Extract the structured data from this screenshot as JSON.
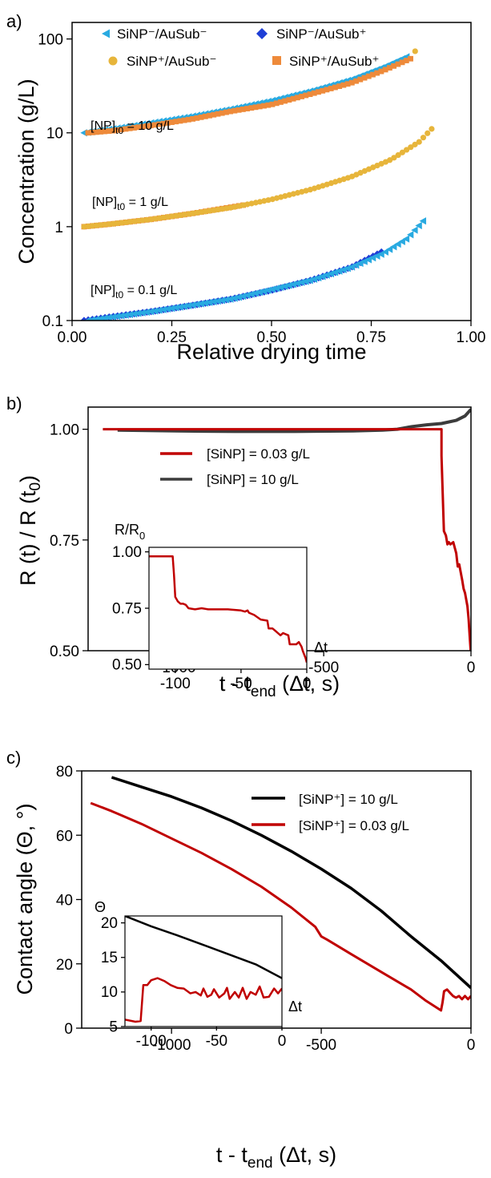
{
  "chart_data": [
    {
      "type": "scatter",
      "panel_label": "a)",
      "xlabel": "Relative drying time",
      "ylabel": "Concentration (g/L)",
      "xlim": [
        0,
        1
      ],
      "ylim": [
        0.1,
        150
      ],
      "y_scale": "log",
      "x_ticks": [
        "0.00",
        "0.25",
        "0.50",
        "0.75",
        "1.00"
      ],
      "y_ticks": [
        "0.1",
        "1",
        "10",
        "100"
      ],
      "legend": [
        {
          "label": "SiNP⁻/AuSub⁻",
          "color": "#29aae1",
          "marker": "triangle-left"
        },
        {
          "label": "SiNP⁻/AuSub⁺",
          "color": "#1f3fd6",
          "marker": "diamond"
        },
        {
          "label": "SiNP⁺/AuSub⁻",
          "color": "#e7b53b",
          "marker": "circle"
        },
        {
          "label": "SiNP⁺/AuSub⁺",
          "color": "#ee8a3a",
          "marker": "square"
        }
      ],
      "annotations": [
        "[NP]t0 = 10 g/L",
        "[NP]t0 = 1 g/L",
        "[NP]t0 = 0.1 g/L"
      ],
      "series": [
        {
          "name": "SiNP⁻/AuSub⁻",
          "color": "#29aae1",
          "marker": "triangle-left",
          "x": [
            0.03,
            0.1,
            0.2,
            0.3,
            0.4,
            0.5,
            0.6,
            0.7,
            0.78,
            0.84
          ],
          "y": [
            10,
            11,
            12.8,
            15,
            18,
            22,
            28,
            37,
            50,
            65
          ]
        },
        {
          "name": "SiNP⁺/AuSub⁺",
          "color": "#ee8a3a",
          "marker": "square",
          "x": [
            0.04,
            0.1,
            0.2,
            0.3,
            0.4,
            0.5,
            0.6,
            0.7,
            0.78,
            0.85
          ],
          "y": [
            10,
            10.5,
            12,
            14,
            17,
            20,
            26,
            34,
            46,
            62
          ]
        },
        {
          "name": "SiNP⁺/AuSub⁺",
          "color": "#ee8a3a",
          "marker": "square",
          "x": [
            0.03,
            0.1,
            0.2,
            0.3,
            0.43
          ],
          "y": [
            1.0,
            1.07,
            1.2,
            1.38,
            1.7
          ]
        },
        {
          "name": "SiNP⁺/AuSub⁻",
          "color": "#e7b53b",
          "marker": "circle",
          "x": [
            0.03,
            0.1,
            0.2,
            0.3,
            0.4,
            0.5,
            0.6,
            0.7,
            0.8,
            0.87,
            0.91
          ],
          "y": [
            1.0,
            1.07,
            1.2,
            1.38,
            1.6,
            1.95,
            2.5,
            3.4,
            5.2,
            8,
            12
          ]
        },
        {
          "name": "SiNP⁺/AuSub⁻",
          "color": "#e7b53b",
          "marker": "circle",
          "x": [
            0.86,
            0.87
          ],
          "y": [
            74,
            76
          ]
        },
        {
          "name": "SiNP⁻/AuSub⁺",
          "color": "#1f3fd6",
          "marker": "diamond",
          "x": [
            0.03,
            0.1,
            0.2,
            0.3,
            0.4,
            0.5,
            0.6,
            0.7,
            0.78
          ],
          "y": [
            0.1,
            0.11,
            0.125,
            0.145,
            0.17,
            0.21,
            0.27,
            0.37,
            0.55
          ]
        },
        {
          "name": "SiNP⁻/AuSub⁻",
          "color": "#29aae1",
          "marker": "triangle-left",
          "x": [
            0.04,
            0.2,
            0.4,
            0.6,
            0.7,
            0.78,
            0.84,
            0.88
          ],
          "y": [
            0.1,
            0.125,
            0.17,
            0.27,
            0.37,
            0.52,
            0.75,
            1.15
          ]
        }
      ]
    },
    {
      "type": "line",
      "panel_label": "b)",
      "xlabel": "t - tend (Δt, s)",
      "ylabel": "R (t) / R (t0)",
      "xlim": [
        -1300,
        0
      ],
      "ylim": [
        0.5,
        1.05
      ],
      "x_ticks": [
        "-1000",
        "-500",
        "0"
      ],
      "y_ticks": [
        "0.50",
        "0.75",
        "1.00"
      ],
      "legend": [
        {
          "label": "[SiNP] = 0.03 g/L",
          "color": "#c00000"
        },
        {
          "label": "[SiNP] = 10 g/L",
          "color": "#3c3c3c"
        }
      ],
      "series": [
        {
          "name": "[SiNP] = 0.03 g/L",
          "color": "#c00000",
          "x": [
            -1250,
            -100,
            -100,
            -92,
            -85,
            -80,
            -75,
            -70,
            -60,
            -50,
            -45,
            -40,
            -30,
            -25,
            -20,
            -12,
            -8,
            -4,
            -1
          ],
          "y": [
            1.0,
            1.0,
            0.94,
            0.77,
            0.76,
            0.74,
            0.745,
            0.74,
            0.745,
            0.72,
            0.69,
            0.695,
            0.66,
            0.64,
            0.63,
            0.6,
            0.57,
            0.53,
            0.5
          ]
        },
        {
          "name": "[SiNP] = 10 g/L",
          "color": "#3c3c3c",
          "x": [
            -1200,
            -1000,
            -800,
            -600,
            -400,
            -300,
            -250,
            -200,
            -150,
            -100,
            -50,
            -20,
            0
          ],
          "y": [
            0.998,
            0.996,
            0.995,
            0.995,
            0.996,
            0.998,
            1.0,
            1.006,
            1.01,
            1.013,
            1.02,
            1.03,
            1.045
          ]
        }
      ],
      "inset": {
        "ylabel": "R/R0",
        "xlabel": "Δt",
        "xlim": [
          -120,
          0
        ],
        "ylim": [
          0.48,
          1.02
        ],
        "x_ticks": [
          "-100",
          "-50",
          "0"
        ],
        "y_ticks": [
          "0.50",
          "0.75",
          "1.00"
        ],
        "series": [
          {
            "name": "[SiNP] = 0.03 g/L",
            "color": "#c00000",
            "x": [
              -120,
              -102,
              -101,
              -100,
              -98,
              -96,
              -94,
              -92,
              -90,
              -85,
              -80,
              -75,
              -70,
              -60,
              -50,
              -47,
              -45,
              -44,
              -40,
              -35,
              -30,
              -29,
              -26,
              -24,
              -20,
              -18,
              -14,
              -13,
              -8,
              -6,
              -4,
              -3,
              -1,
              0
            ],
            "y": [
              0.98,
              0.98,
              0.9,
              0.8,
              0.78,
              0.77,
              0.77,
              0.765,
              0.75,
              0.745,
              0.75,
              0.745,
              0.745,
              0.745,
              0.74,
              0.735,
              0.74,
              0.73,
              0.72,
              0.7,
              0.695,
              0.66,
              0.66,
              0.65,
              0.63,
              0.64,
              0.63,
              0.59,
              0.59,
              0.6,
              0.58,
              0.56,
              0.53,
              0.51
            ]
          }
        ]
      }
    },
    {
      "type": "line",
      "panel_label": "c)",
      "xlabel": "t - tend (Δt, s)",
      "ylabel": "Contact angle (Θ, °)",
      "xlim": [
        -1300,
        0
      ],
      "ylim": [
        0,
        80
      ],
      "x_ticks": [
        "-1000",
        "-500",
        "0"
      ],
      "y_ticks": [
        "0",
        "20",
        "40",
        "60",
        "80"
      ],
      "legend": [
        {
          "label": "[SiNP⁺] = 10 g/L",
          "color": "#000000"
        },
        {
          "label": "[SiNP⁺] = 0.03 g/L",
          "color": "#c00000"
        }
      ],
      "series": [
        {
          "name": "[SiNP⁺] = 10 g/L",
          "color": "#000000",
          "x": [
            -1200,
            -1100,
            -1000,
            -900,
            -800,
            -700,
            -600,
            -500,
            -400,
            -300,
            -200,
            -100,
            0
          ],
          "y": [
            78,
            75,
            72,
            68.5,
            64.5,
            60,
            55,
            49.5,
            43.5,
            36.5,
            28.5,
            21,
            12.5
          ]
        },
        {
          "name": "[SiNP⁺] = 0.03 g/L",
          "color": "#c00000",
          "x": [
            -1270,
            -1200,
            -1100,
            -1000,
            -900,
            -800,
            -700,
            -600,
            -520,
            -500,
            -480,
            -400,
            -300,
            -200,
            -150,
            -100,
            -95,
            -90,
            -80,
            -70,
            -60,
            -50,
            -40,
            -30,
            -20,
            -10,
            0
          ],
          "y": [
            70,
            67.5,
            63.5,
            59,
            54.5,
            49.5,
            44,
            37.5,
            31.5,
            28.5,
            27.5,
            23,
            17.5,
            12,
            8.5,
            5.5,
            8,
            11.5,
            12,
            11,
            10,
            9.5,
            10,
            9,
            10,
            9,
            10
          ]
        }
      ],
      "inset": {
        "ylabel": "Θ",
        "xlabel": "Δt",
        "xlim": [
          -120,
          0
        ],
        "ylim": [
          5,
          21
        ],
        "x_ticks": [
          "-100",
          "-50",
          "0"
        ],
        "y_ticks": [
          "5",
          "10",
          "15",
          "20"
        ],
        "series": [
          {
            "name": "[SiNP⁺] = 10 g/L",
            "color": "#000000",
            "x": [
              -120,
              -100,
              -80,
              -60,
              -40,
              -20,
              0
            ],
            "y": [
              21,
              19.5,
              18.2,
              16.8,
              15.4,
              14,
              12
            ]
          },
          {
            "name": "[SiNP⁺] = 0.03 g/L",
            "color": "#c00000",
            "x": [
              -120,
              -112,
              -108,
              -106,
              -103,
              -100,
              -95,
              -90,
              -85,
              -80,
              -75,
              -70,
              -66,
              -62,
              -60,
              -57,
              -54,
              -52,
              -48,
              -44,
              -42,
              -40,
              -36,
              -33,
              -30,
              -27,
              -24,
              -20,
              -17,
              -14,
              -10,
              -6,
              -3,
              0
            ],
            "y": [
              6,
              5.7,
              5.8,
              11,
              11,
              11.7,
              12,
              11.6,
              11,
              10.6,
              10.5,
              9.8,
              10,
              9.5,
              10.5,
              9.3,
              9.6,
              10.4,
              9.2,
              9.8,
              10.6,
              9,
              10,
              9.2,
              10.6,
              9,
              10,
              9.6,
              10.8,
              9.2,
              9.3,
              10.5,
              9.8,
              10.5
            ]
          }
        ]
      }
    }
  ]
}
